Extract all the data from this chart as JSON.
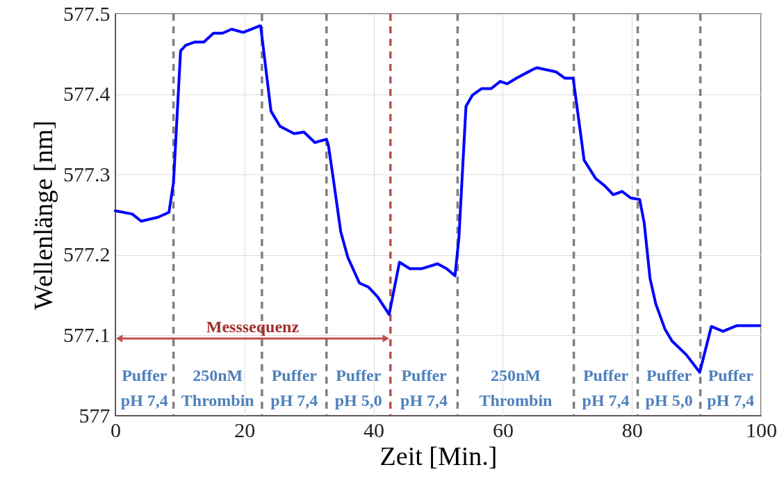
{
  "chart_data": {
    "type": "line",
    "xlabel": "Zeit [Min.]",
    "ylabel": "Wellenlänge [nm]",
    "xlim": [
      0,
      100
    ],
    "xticks": [
      0,
      20,
      40,
      60,
      80,
      100
    ],
    "ylim": [
      577,
      577.5
    ],
    "yticks": [
      577,
      577.1,
      577.2,
      577.3,
      577.4,
      577.5
    ],
    "grid": true,
    "marker": "none",
    "line_style": "solid",
    "series": [
      {
        "color": "#0000ff",
        "x": [
          0,
          2.6,
          4.0,
          6.6,
          8.3,
          9.0,
          10.1,
          10.9,
          12.3,
          13.7,
          15.2,
          16.6,
          18.0,
          19.8,
          22.3,
          22.5,
          24.1,
          25.5,
          27.7,
          29.2,
          30.9,
          32.7,
          33.0,
          33.8,
          34.9,
          36.0,
          37.8,
          39.2,
          40.6,
          42.4,
          44.0,
          45.6,
          47.5,
          49.9,
          51.3,
          52.6,
          53.2,
          54.3,
          55.3,
          56.7,
          58.2,
          59.6,
          60.7,
          62.1,
          64.7,
          65.3,
          68.2,
          69.6,
          70.9,
          72.6,
          74.4,
          75.8,
          77.1,
          78.5,
          79.8,
          81.2,
          81.9,
          82.8,
          83.7,
          85.1,
          86.2,
          88.4,
          90.5,
          92.3,
          94.1,
          96.2,
          99.8
        ],
        "values": [
          577.255,
          577.251,
          577.242,
          577.247,
          577.253,
          577.29,
          577.454,
          577.461,
          577.465,
          577.465,
          577.476,
          577.476,
          577.481,
          577.477,
          577.485,
          577.485,
          577.379,
          577.36,
          577.351,
          577.353,
          577.34,
          577.344,
          577.336,
          577.292,
          577.229,
          577.197,
          577.165,
          577.16,
          577.148,
          577.126,
          577.191,
          577.183,
          577.183,
          577.189,
          577.183,
          577.174,
          577.221,
          577.385,
          577.399,
          577.407,
          577.407,
          577.416,
          577.413,
          577.42,
          577.431,
          577.433,
          577.428,
          577.42,
          577.42,
          577.318,
          577.295,
          577.286,
          577.275,
          577.279,
          577.271,
          577.269,
          577.24,
          577.171,
          577.139,
          577.108,
          577.093,
          577.076,
          577.054,
          577.111,
          577.105,
          577.112,
          577.112
        ]
      }
    ],
    "ref_lines": [
      {
        "axis": "x",
        "value": 9.0,
        "color": "#808080",
        "line_style": "dashed"
      },
      {
        "axis": "x",
        "value": 22.7,
        "color": "#808080",
        "line_style": "dashed"
      },
      {
        "axis": "x",
        "value": 32.7,
        "color": "#808080",
        "line_style": "dashed"
      },
      {
        "axis": "x",
        "value": 42.6,
        "color": "#c0504d",
        "line_style": "dashed"
      },
      {
        "axis": "x",
        "value": 53.0,
        "color": "#808080",
        "line_style": "dashed"
      },
      {
        "axis": "x",
        "value": 71.0,
        "color": "#808080",
        "line_style": "dashed"
      },
      {
        "axis": "x",
        "value": 80.9,
        "color": "#808080",
        "line_style": "dashed"
      },
      {
        "axis": "x",
        "value": 90.6,
        "color": "#808080",
        "line_style": "dashed"
      }
    ],
    "annotations": [
      "Messsequenz",
      "Puffer\npH 7,4",
      "250nM\nThrombin",
      "Puffer\npH 7,4",
      "Puffer\npH 5,0",
      "Puffer\npH 7,4",
      "250nM\nThrombin",
      "Puffer\npH 7,4",
      "Puffer\npH 5,0",
      "Puffer\npH 7,4"
    ]
  }
}
